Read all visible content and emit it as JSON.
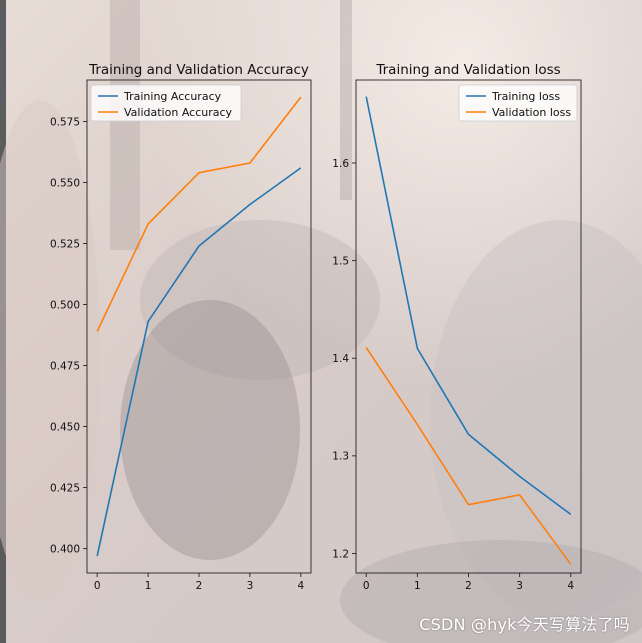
{
  "watermark": "CSDN @hyk今天写算法了吗",
  "colors": {
    "series_blue": "#1f77b4",
    "series_orange": "#ff7f0e",
    "axis": "#222222"
  },
  "chart_data": [
    {
      "type": "line",
      "title": "Training and Validation Accuracy",
      "x": [
        0,
        1,
        2,
        3,
        4
      ],
      "xticks": [
        "0",
        "1",
        "2",
        "3",
        "4"
      ],
      "xlim": [
        -0.2,
        4.2
      ],
      "ylim": [
        0.39,
        0.592
      ],
      "yticks": [
        "0.400",
        "0.425",
        "0.450",
        "0.475",
        "0.500",
        "0.525",
        "0.550",
        "0.575"
      ],
      "legend_position": "upper-left",
      "grid": false,
      "series": [
        {
          "name": "Training Accuracy",
          "color": "#1f77b4",
          "values": [
            0.397,
            0.493,
            0.524,
            0.541,
            0.556
          ]
        },
        {
          "name": "Validation Accuracy",
          "color": "#ff7f0e",
          "values": [
            0.489,
            0.533,
            0.554,
            0.558,
            0.585
          ]
        }
      ]
    },
    {
      "type": "line",
      "title": "Training and Validation loss",
      "x": [
        0,
        1,
        2,
        3,
        4
      ],
      "xticks": [
        "0",
        "1",
        "2",
        "3",
        "4"
      ],
      "xlim": [
        -0.2,
        4.2
      ],
      "ylim": [
        1.18,
        1.685
      ],
      "yticks": [
        "1.2",
        "1.3",
        "1.4",
        "1.5",
        "1.6"
      ],
      "legend_position": "upper-right",
      "grid": false,
      "series": [
        {
          "name": "Training loss",
          "color": "#1f77b4",
          "values": [
            1.668,
            1.41,
            1.322,
            1.279,
            1.24
          ]
        },
        {
          "name": "Validation loss",
          "color": "#ff7f0e",
          "values": [
            1.411,
            1.332,
            1.25,
            1.26,
            1.189
          ]
        }
      ]
    }
  ]
}
